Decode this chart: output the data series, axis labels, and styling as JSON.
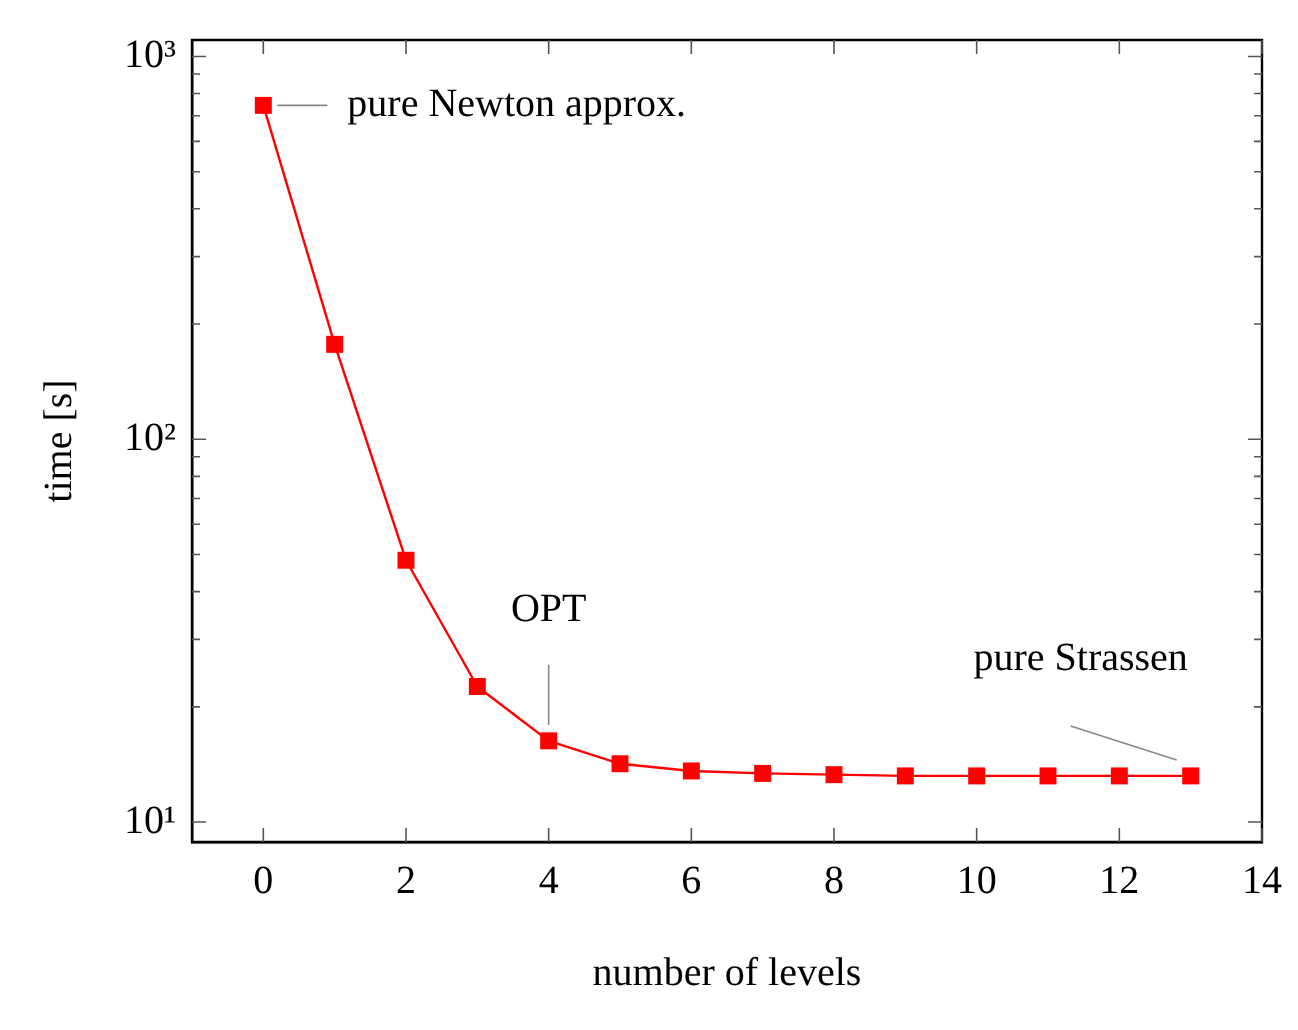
{
  "chart_data": {
    "type": "line",
    "xlabel": "number of levels",
    "ylabel": "time [s]",
    "x": [
      0,
      1,
      2,
      3,
      4,
      5,
      6,
      7,
      8,
      9,
      10,
      11,
      12,
      13
    ],
    "series": [
      {
        "color": "#ff0000",
        "values": [
          745,
          177,
          48.3,
          22.6,
          16.3,
          14.2,
          13.6,
          13.4,
          13.3,
          13.2,
          13.2,
          13.2,
          13.2,
          13.2
        ]
      }
    ],
    "log": "y",
    "marker": "square",
    "line_style": "solid",
    "legend": false,
    "xlim": [
      -1,
      14
    ],
    "xticks": [
      0,
      2,
      4,
      6,
      8,
      10,
      12,
      14
    ],
    "ylim": [
      8.87,
      1104
    ],
    "yticks": [
      {
        "value": 10,
        "label": "10¹"
      },
      {
        "value": 20,
        "label": null
      },
      {
        "value": 30,
        "label": null
      },
      {
        "value": 40,
        "label": null
      },
      {
        "value": 50,
        "label": null
      },
      {
        "value": 60,
        "label": null
      },
      {
        "value": 70,
        "label": null
      },
      {
        "value": 80,
        "label": null
      },
      {
        "value": 90,
        "label": null
      },
      {
        "value": 100,
        "label": "10²"
      },
      {
        "value": 200,
        "label": null
      },
      {
        "value": 300,
        "label": null
      },
      {
        "value": 400,
        "label": null
      },
      {
        "value": 500,
        "label": null
      },
      {
        "value": 600,
        "label": null
      },
      {
        "value": 700,
        "label": null
      },
      {
        "value": 800,
        "label": null
      },
      {
        "value": 900,
        "label": null
      },
      {
        "value": 1000,
        "label": "10³"
      }
    ],
    "annotations": [
      {
        "text": "pure Newton approx.",
        "x": 0,
        "y": 745
      },
      {
        "text": "OPT",
        "x": 4,
        "y": 16.3
      },
      {
        "text": "pure Strassen",
        "x": 13,
        "y": 13.2
      }
    ]
  }
}
